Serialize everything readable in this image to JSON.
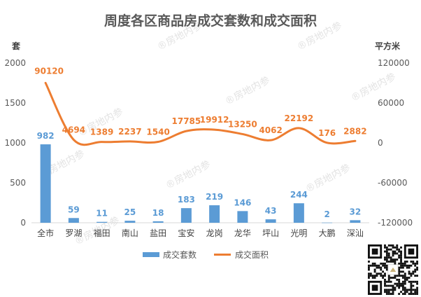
{
  "chart_data": {
    "type": "bar",
    "title": "周度各区商品房成交套数和成交面积",
    "categories": [
      "全市",
      "罗湖",
      "福田",
      "南山",
      "盐田",
      "宝安",
      "龙岗",
      "龙华",
      "坪山",
      "光明",
      "大鹏",
      "深汕"
    ],
    "series": [
      {
        "name": "成交套数",
        "type": "bar",
        "axis": "left",
        "color": "#5b9bd5",
        "values": [
          982,
          59,
          11,
          25,
          18,
          183,
          219,
          146,
          43,
          244,
          2,
          32
        ]
      },
      {
        "name": "成交面积",
        "type": "line",
        "axis": "right",
        "color": "#ed7d31",
        "values": [
          90120,
          4694,
          1389,
          2237,
          1540,
          17785,
          19912,
          13250,
          4062,
          22192,
          176,
          2882
        ]
      }
    ],
    "y_left": {
      "unit": "套",
      "min": 0,
      "max": 2000,
      "ticks": [
        0,
        500,
        1000,
        1500,
        2000
      ]
    },
    "y_right": {
      "unit": "平方米",
      "min": -120000,
      "max": 120000,
      "ticks": [
        -120000,
        -60000,
        0,
        60000,
        120000
      ]
    },
    "legend_position": "bottom",
    "grid": false
  },
  "watermark": "房地内参"
}
